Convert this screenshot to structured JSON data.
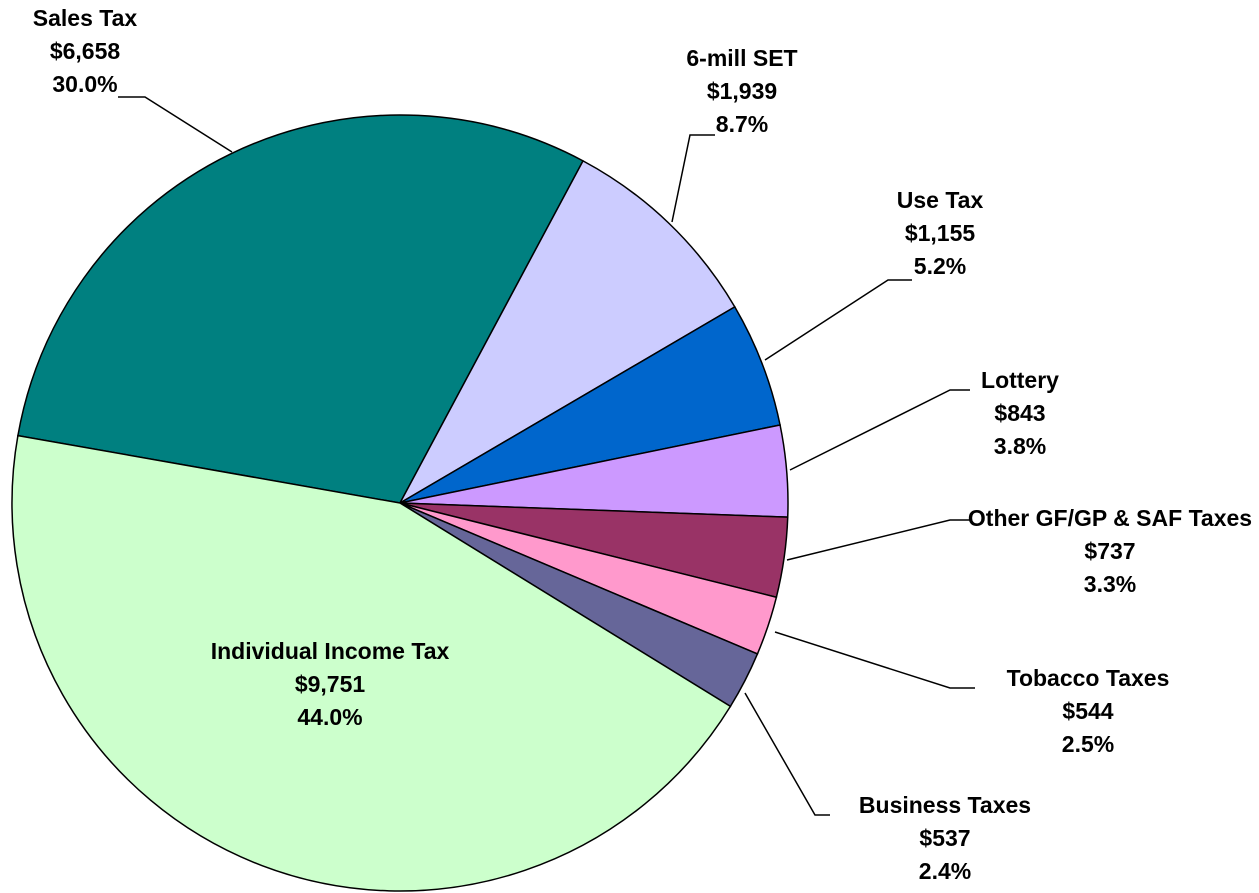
{
  "chart_data": {
    "type": "pie",
    "categories": [
      "Sales Tax",
      "6-mill SET",
      "Use Tax",
      "Lottery",
      "Other GF/GP & SAF Taxes",
      "Tobacco Taxes",
      "Business Taxes",
      "Individual Income Tax"
    ],
    "values": [
      6658,
      1939,
      1155,
      843,
      737,
      544,
      537,
      9751
    ],
    "value_labels": [
      "$6,658",
      "$1,939",
      "$1,155",
      "$843",
      "$737",
      "$544",
      "$537",
      "$9,751"
    ],
    "percent_labels": [
      "30.0%",
      "8.7%",
      "5.2%",
      "3.8%",
      "3.3%",
      "2.5%",
      "2.4%",
      "44.0%"
    ],
    "colors": [
      "#008080",
      "#ccccff",
      "#0066cc",
      "#cc99ff",
      "#993366",
      "#ff99cc",
      "#666699",
      "#ccffcc"
    ]
  }
}
